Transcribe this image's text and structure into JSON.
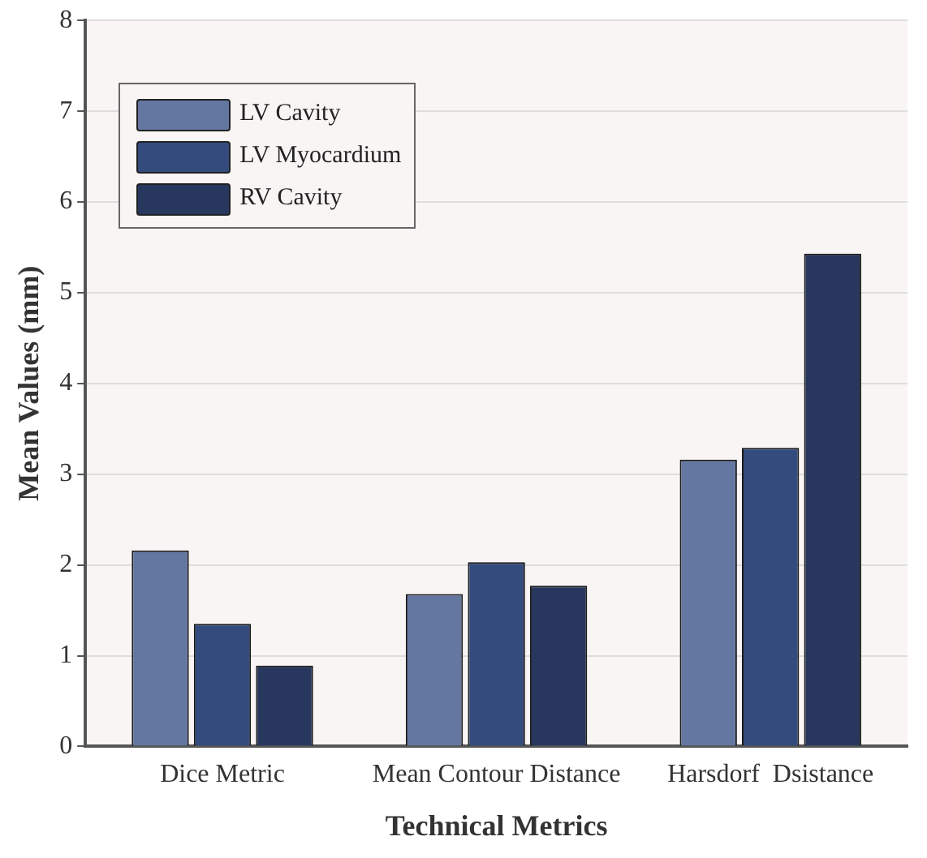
{
  "chart_data": {
    "type": "bar",
    "xlabel": "Technical Metrics",
    "ylabel": "Mean Values (mm)",
    "categories": [
      "Dice Metric",
      "Mean Contour Distance",
      "Harsdorf  Dsistance"
    ],
    "series": [
      {
        "name": "LV Cavity",
        "color": "#6477a0",
        "values": [
          2.16,
          1.68,
          3.16
        ]
      },
      {
        "name": "LV Myocardium",
        "color": "#344b7e",
        "values": [
          1.35,
          2.03,
          3.29
        ]
      },
      {
        "name": "RV Cavity",
        "color": "#27375e",
        "values": [
          0.89,
          1.77,
          5.43
        ]
      }
    ],
    "ylim": [
      0,
      8
    ],
    "yticks": [
      0,
      1,
      2,
      3,
      4,
      5,
      6,
      7,
      8
    ],
    "grid": "y",
    "legend": "top left"
  }
}
